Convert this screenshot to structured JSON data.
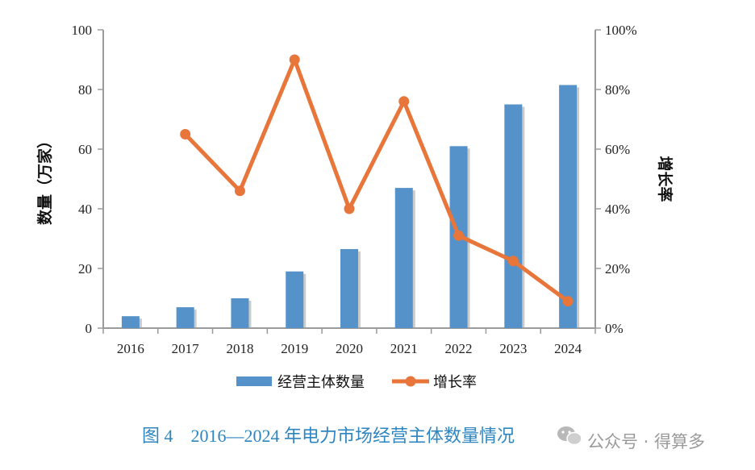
{
  "chart_data": {
    "type": "bar",
    "categories": [
      "2016",
      "2017",
      "2018",
      "2019",
      "2020",
      "2021",
      "2022",
      "2023",
      "2024"
    ],
    "series": [
      {
        "name": "经营主体数量",
        "type": "bar",
        "axis": "left",
        "color": "#5592c9",
        "values": [
          4,
          7,
          10,
          19,
          26.5,
          47,
          61,
          75,
          81.5
        ]
      },
      {
        "name": "增长率",
        "type": "line",
        "axis": "right",
        "color": "#e8763b",
        "values": [
          null,
          65,
          46,
          90,
          40,
          76,
          31,
          22.5,
          9
        ]
      }
    ],
    "ylabel": "数量（万家）",
    "y2label": "增长率",
    "ylim": [
      0,
      100
    ],
    "y2lim": [
      0,
      100
    ],
    "yticks": [
      "0",
      "20",
      "40",
      "60",
      "80",
      "100"
    ],
    "y2ticks": [
      "0%",
      "20%",
      "40%",
      "60%",
      "80%",
      "100%"
    ],
    "legend": "bottom",
    "caption": "图 4　2016—2024 年电力市场经营主体数量情况"
  },
  "watermark": "公众号 · 得算多",
  "colors": {
    "bar": "#5592c9",
    "bar_shadow": "#a9a9a9",
    "line": "#e8763b",
    "axis": "#9a9a9a",
    "caption": "#2e86c1"
  }
}
